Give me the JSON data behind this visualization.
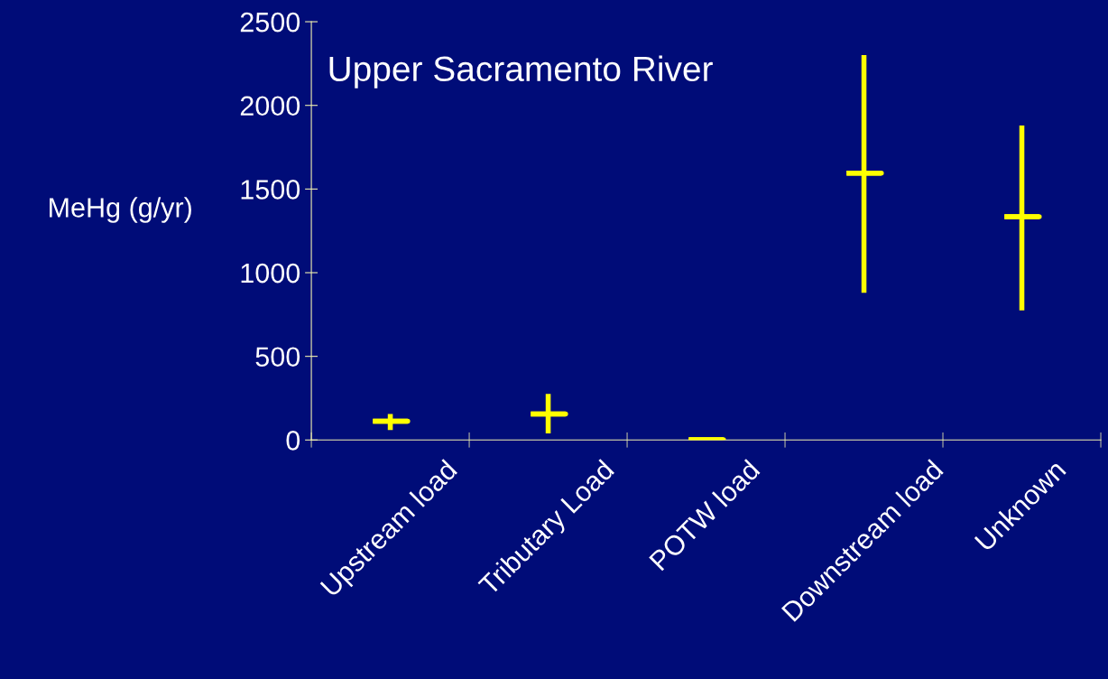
{
  "chart_data": {
    "type": "box",
    "title": "Upper Sacramento River",
    "ylabel": "MeHg (g/yr)",
    "categories": [
      "Upstream load",
      "Tributary Load",
      "POTW load",
      "Downstream load",
      "Unknown"
    ],
    "boxes": [
      {
        "low": 60,
        "q1": 112,
        "median": 112,
        "q3": 112,
        "high": 155
      },
      {
        "low": 40,
        "q1": 155,
        "median": 155,
        "q3": 155,
        "high": 275
      },
      {
        "low": 2,
        "q1": 2,
        "median": 2,
        "q3": 2,
        "high": 2
      },
      {
        "low": 880,
        "q1": 1595,
        "median": 1595,
        "q3": 1595,
        "high": 2300
      },
      {
        "low": 775,
        "q1": 1335,
        "median": 1335,
        "q3": 1335,
        "high": 1880
      }
    ],
    "color": "#ffff00",
    "ylim": [
      0,
      2500
    ],
    "yticks": [
      0,
      500,
      1000,
      1500,
      2000,
      2500
    ],
    "grid": false,
    "legend": false
  }
}
